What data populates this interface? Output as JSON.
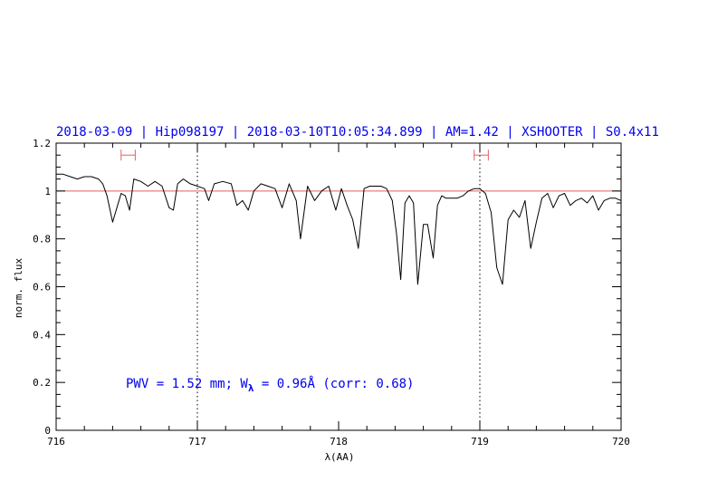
{
  "chart_data": {
    "type": "line",
    "title": "2018-03-09 | Hip098197 | 2018-03-10T10:05:34.899 | AM=1.42 | XSHOOTER | S0.4x11",
    "xlabel": "λ(AA)",
    "ylabel": "norm. flux",
    "xlim": [
      716,
      720
    ],
    "ylim": [
      0,
      1.2
    ],
    "x_ticks": [
      716,
      717,
      718,
      719,
      720
    ],
    "y_ticks": [
      0,
      0.2,
      0.4,
      0.6,
      0.8,
      1,
      1.2
    ],
    "x_tick_labels": [
      "716",
      "717",
      "718",
      "719",
      "720"
    ],
    "y_tick_labels": [
      "0",
      "0.2",
      "0.4",
      "0.6",
      "0.8",
      "1",
      "1.2"
    ],
    "reference_line": {
      "y": 1.0,
      "color": "#e06060"
    },
    "vertical_lines": [
      717,
      719
    ],
    "ranges": [
      {
        "x0": 716.46,
        "x1": 716.56,
        "y": 1.15,
        "color": "#e06060"
      },
      {
        "x0": 718.96,
        "x1": 719.06,
        "y": 1.15,
        "color": "#e06060"
      }
    ],
    "annotation": {
      "pwv_prefix": "PWV = 1.52 mm; W",
      "subscript": "λ",
      "suffix": " = 0.96Å (corr: 0.68)"
    },
    "series": [
      {
        "color": "#000000",
        "x": [
          716.0,
          716.05,
          716.1,
          716.15,
          716.2,
          716.25,
          716.3,
          716.33,
          716.36,
          716.4,
          716.43,
          716.46,
          716.49,
          716.52,
          716.55,
          716.6,
          716.65,
          716.7,
          716.75,
          716.8,
          716.83,
          716.86,
          716.9,
          716.95,
          717.0,
          717.05,
          717.08,
          717.12,
          717.18,
          717.24,
          717.28,
          717.32,
          717.36,
          717.4,
          717.45,
          717.5,
          717.55,
          717.6,
          717.65,
          717.7,
          717.73,
          717.78,
          717.83,
          717.88,
          717.93,
          717.98,
          718.02,
          718.06,
          718.1,
          718.14,
          718.18,
          718.22,
          718.26,
          718.3,
          718.34,
          718.38,
          718.41,
          718.44,
          718.47,
          718.5,
          718.53,
          718.56,
          718.6,
          718.63,
          718.67,
          718.7,
          718.73,
          718.76,
          718.8,
          718.84,
          718.88,
          718.92,
          718.96,
          719.0,
          719.04,
          719.08,
          719.12,
          719.16,
          719.2,
          719.24,
          719.28,
          719.32,
          719.36,
          719.4,
          719.44,
          719.48,
          719.52,
          719.56,
          719.6,
          719.64,
          719.68,
          719.72,
          719.76,
          719.8,
          719.84,
          719.88,
          719.92,
          719.96,
          720.0
        ],
        "y": [
          1.07,
          1.07,
          1.06,
          1.05,
          1.06,
          1.06,
          1.05,
          1.03,
          0.98,
          0.87,
          0.93,
          0.99,
          0.98,
          0.92,
          1.05,
          1.04,
          1.02,
          1.04,
          1.02,
          0.93,
          0.92,
          1.03,
          1.05,
          1.03,
          1.02,
          1.01,
          0.96,
          1.03,
          1.04,
          1.03,
          0.94,
          0.96,
          0.92,
          1.0,
          1.03,
          1.02,
          1.01,
          0.93,
          1.03,
          0.96,
          0.8,
          1.02,
          0.96,
          1.0,
          1.02,
          0.92,
          1.01,
          0.94,
          0.88,
          0.76,
          1.01,
          1.02,
          1.02,
          1.02,
          1.01,
          0.96,
          0.82,
          0.63,
          0.95,
          0.98,
          0.95,
          0.61,
          0.86,
          0.86,
          0.72,
          0.94,
          0.98,
          0.97,
          0.97,
          0.97,
          0.98,
          1.0,
          1.01,
          1.01,
          0.99,
          0.91,
          0.68,
          0.61,
          0.88,
          0.92,
          0.89,
          0.96,
          0.76,
          0.87,
          0.97,
          0.99,
          0.93,
          0.98,
          0.99,
          0.94,
          0.96,
          0.97,
          0.95,
          0.98,
          0.92,
          0.96,
          0.97,
          0.97,
          0.96
        ]
      }
    ]
  }
}
